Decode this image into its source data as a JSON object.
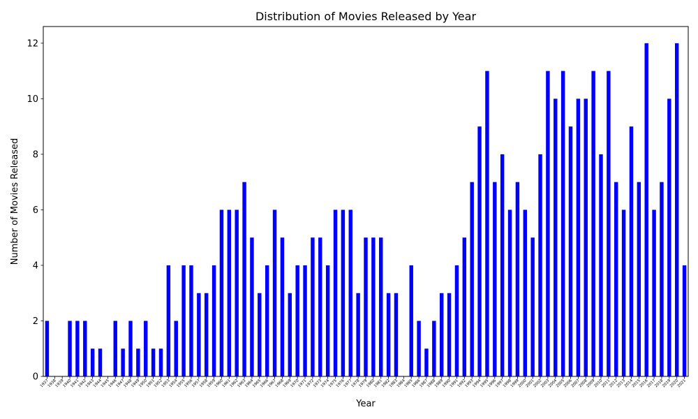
{
  "chart_data": {
    "type": "bar",
    "title": "Distribution of Movies Released by Year",
    "xlabel": "Year",
    "ylabel": "Number of Movies Released",
    "ylim": [
      0,
      12.6
    ],
    "yticks": [
      0,
      2,
      4,
      6,
      8,
      10,
      12
    ],
    "bar_color": "#0000ff",
    "grid": false,
    "categories": [
      "1937",
      "1938",
      "1939",
      "1940",
      "1941",
      "1942",
      "1943",
      "1944",
      "1945",
      "1946",
      "1947",
      "1948",
      "1949",
      "1950",
      "1951",
      "1952",
      "1953",
      "1954",
      "1955",
      "1956",
      "1957",
      "1958",
      "1959",
      "1960",
      "1961",
      "1962",
      "1963",
      "1964",
      "1965",
      "1966",
      "1967",
      "1968",
      "1969",
      "1970",
      "1971",
      "1972",
      "1973",
      "1974",
      "1975",
      "1976",
      "1977",
      "1978",
      "1979",
      "1980",
      "1981",
      "1982",
      "1983",
      "1984",
      "1985",
      "1986",
      "1987",
      "1988",
      "1989",
      "1990",
      "1991",
      "1992",
      "1993",
      "1994",
      "1995",
      "1996",
      "1997",
      "1998",
      "1999",
      "2000",
      "2001",
      "2002",
      "2003",
      "2004",
      "2005",
      "2006",
      "2007",
      "2008",
      "2009",
      "2010",
      "2011",
      "2012",
      "2013",
      "2014",
      "2015",
      "2016",
      "2017",
      "2018",
      "2019",
      "2020",
      "2021"
    ],
    "values": [
      2,
      0,
      0,
      2,
      2,
      2,
      1,
      1,
      0,
      2,
      1,
      2,
      1,
      2,
      1,
      1,
      4,
      2,
      4,
      4,
      3,
      3,
      4,
      6,
      6,
      6,
      7,
      5,
      3,
      4,
      6,
      5,
      3,
      4,
      4,
      5,
      5,
      4,
      6,
      6,
      6,
      3,
      5,
      5,
      5,
      3,
      3,
      0,
      4,
      2,
      1,
      2,
      3,
      3,
      4,
      5,
      7,
      9,
      11,
      7,
      8,
      6,
      7,
      6,
      5,
      8,
      11,
      10,
      11,
      9,
      10,
      10,
      11,
      8,
      11,
      7,
      6,
      9,
      7,
      12,
      6,
      7,
      10,
      12,
      4
    ]
  }
}
